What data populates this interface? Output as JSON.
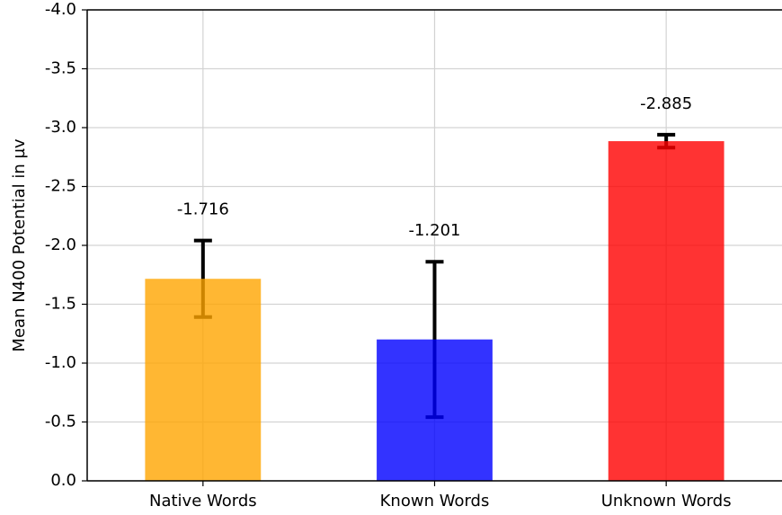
{
  "chart_data": {
    "type": "bar",
    "ylabel": "Mean N400 Potential in µv",
    "categories": [
      "Native Words",
      "Known Words",
      "Unknown Words"
    ],
    "values": [
      -1.716,
      -1.201,
      -2.885
    ],
    "errors": [
      0.325,
      0.66,
      0.055
    ],
    "colors": [
      "#ffa500",
      "#0000ff",
      "#ff0000"
    ],
    "ylim": [
      0,
      -4.0
    ],
    "yticks": [
      {
        "value": 0,
        "label": "0.0"
      },
      -0.5,
      {
        "value": -1,
        "label": "-1.0"
      },
      -1.5,
      {
        "value": -2,
        "label": "-2.0"
      },
      -2.5,
      {
        "value": -3,
        "label": "-3.0"
      },
      -3.5,
      {
        "value": -4,
        "label": "-4.0"
      }
    ],
    "grid": true
  }
}
